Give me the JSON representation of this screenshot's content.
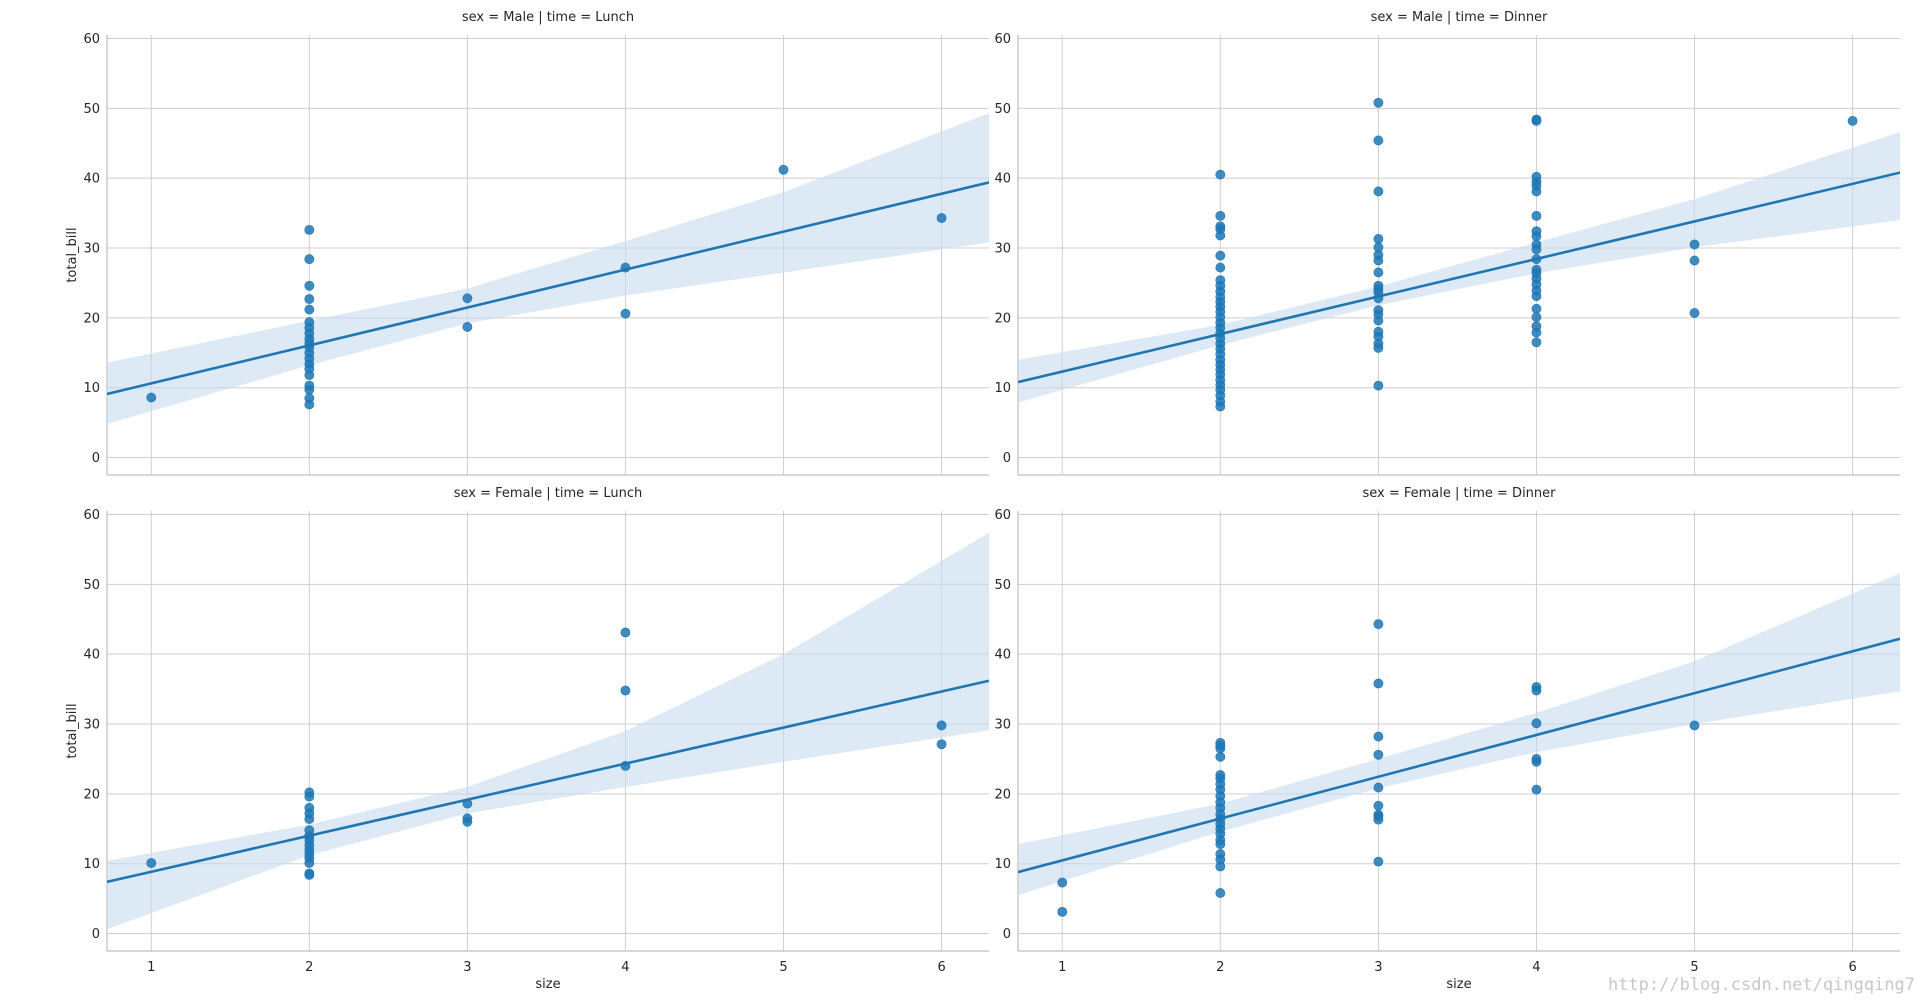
{
  "watermark": "http://blog.csdn.net/qingqing7",
  "colors": {
    "point": "#1f77b4",
    "line": "#2176b1",
    "band": "#c6dbef",
    "grid": "#cfcfcf",
    "spine": "#bfbfbf"
  },
  "chart_data": [
    {
      "type": "scatter",
      "title": "sex = Male | time = Lunch",
      "xlabel": "",
      "ylabel": "total_bill",
      "xlim": [
        0.72,
        6.3
      ],
      "ylim": [
        -2.5,
        60.5
      ],
      "xticks": [
        1,
        2,
        3,
        4,
        5,
        6
      ],
      "yticks": [
        0,
        10,
        20,
        30,
        40,
        50,
        60
      ],
      "grid": true,
      "x_tick_labels_visible": false,
      "regression": {
        "x": [
          0.72,
          6.3
        ],
        "y": [
          9.1,
          39.4
        ]
      },
      "ci_band": {
        "x": [
          0.72,
          2,
          3,
          4,
          5,
          6.3
        ],
        "lower": [
          4.8,
          13.2,
          19.2,
          23.2,
          26.5,
          30.8
        ],
        "upper": [
          13.6,
          19.6,
          24.2,
          31.0,
          38.0,
          49.3
        ]
      },
      "points": [
        {
          "x": 1,
          "y": 8.6
        },
        {
          "x": 2,
          "y": 7.6
        },
        {
          "x": 2,
          "y": 8.5
        },
        {
          "x": 2,
          "y": 9.7
        },
        {
          "x": 2,
          "y": 10.3
        },
        {
          "x": 2,
          "y": 11.8
        },
        {
          "x": 2,
          "y": 12.7
        },
        {
          "x": 2,
          "y": 13.4
        },
        {
          "x": 2,
          "y": 14.2
        },
        {
          "x": 2,
          "y": 15.0
        },
        {
          "x": 2,
          "y": 15.8
        },
        {
          "x": 2,
          "y": 16.4
        },
        {
          "x": 2,
          "y": 17.0
        },
        {
          "x": 2,
          "y": 17.8
        },
        {
          "x": 2,
          "y": 18.6
        },
        {
          "x": 2,
          "y": 19.4
        },
        {
          "x": 2,
          "y": 21.2
        },
        {
          "x": 2,
          "y": 22.7
        },
        {
          "x": 2,
          "y": 24.6
        },
        {
          "x": 2,
          "y": 28.4
        },
        {
          "x": 2,
          "y": 32.6
        },
        {
          "x": 3,
          "y": 18.7
        },
        {
          "x": 3,
          "y": 22.8
        },
        {
          "x": 4,
          "y": 20.6
        },
        {
          "x": 4,
          "y": 27.2
        },
        {
          "x": 5,
          "y": 41.2
        },
        {
          "x": 6,
          "y": 34.3
        }
      ]
    },
    {
      "type": "scatter",
      "title": "sex = Male | time = Dinner",
      "xlabel": "",
      "ylabel": "",
      "xlim": [
        0.72,
        6.3
      ],
      "ylim": [
        -2.5,
        60.5
      ],
      "xticks": [
        1,
        2,
        3,
        4,
        5,
        6
      ],
      "yticks": [
        0,
        10,
        20,
        30,
        40,
        50,
        60
      ],
      "grid": true,
      "x_tick_labels_visible": false,
      "regression": {
        "x": [
          0.72,
          6.3
        ],
        "y": [
          10.8,
          40.8
        ]
      },
      "ci_band": {
        "x": [
          0.72,
          2,
          3,
          4,
          5,
          6.3
        ],
        "lower": [
          7.9,
          16.1,
          21.8,
          26.4,
          30.1,
          34.0
        ],
        "upper": [
          14.0,
          19.0,
          24.5,
          30.8,
          37.0,
          46.6
        ]
      },
      "points": [
        {
          "x": 2,
          "y": 7.3
        },
        {
          "x": 2,
          "y": 8.0
        },
        {
          "x": 2,
          "y": 8.9
        },
        {
          "x": 2,
          "y": 9.7
        },
        {
          "x": 2,
          "y": 10.4
        },
        {
          "x": 2,
          "y": 11.1
        },
        {
          "x": 2,
          "y": 11.9
        },
        {
          "x": 2,
          "y": 12.6
        },
        {
          "x": 2,
          "y": 13.3
        },
        {
          "x": 2,
          "y": 14.0
        },
        {
          "x": 2,
          "y": 14.8
        },
        {
          "x": 2,
          "y": 15.6
        },
        {
          "x": 2,
          "y": 16.3
        },
        {
          "x": 2,
          "y": 17.1
        },
        {
          "x": 2,
          "y": 17.8
        },
        {
          "x": 2,
          "y": 18.6
        },
        {
          "x": 2,
          "y": 19.3
        },
        {
          "x": 2,
          "y": 20.1
        },
        {
          "x": 2,
          "y": 20.9
        },
        {
          "x": 2,
          "y": 21.6
        },
        {
          "x": 2,
          "y": 22.3
        },
        {
          "x": 2,
          "y": 23.0
        },
        {
          "x": 2,
          "y": 23.8
        },
        {
          "x": 2,
          "y": 24.6
        },
        {
          "x": 2,
          "y": 25.4
        },
        {
          "x": 2,
          "y": 27.2
        },
        {
          "x": 2,
          "y": 28.9
        },
        {
          "x": 2,
          "y": 31.8
        },
        {
          "x": 2,
          "y": 32.7
        },
        {
          "x": 2,
          "y": 33.1
        },
        {
          "x": 2,
          "y": 34.6
        },
        {
          "x": 2,
          "y": 40.5
        },
        {
          "x": 3,
          "y": 10.3
        },
        {
          "x": 3,
          "y": 15.7
        },
        {
          "x": 3,
          "y": 16.3
        },
        {
          "x": 3,
          "y": 17.3
        },
        {
          "x": 3,
          "y": 18.0
        },
        {
          "x": 3,
          "y": 19.6
        },
        {
          "x": 3,
          "y": 20.5
        },
        {
          "x": 3,
          "y": 21.1
        },
        {
          "x": 3,
          "y": 22.8
        },
        {
          "x": 3,
          "y": 23.6
        },
        {
          "x": 3,
          "y": 24.1
        },
        {
          "x": 3,
          "y": 24.6
        },
        {
          "x": 3,
          "y": 26.5
        },
        {
          "x": 3,
          "y": 28.2
        },
        {
          "x": 3,
          "y": 29.0
        },
        {
          "x": 3,
          "y": 30.1
        },
        {
          "x": 3,
          "y": 31.3
        },
        {
          "x": 3,
          "y": 38.1
        },
        {
          "x": 3,
          "y": 45.4
        },
        {
          "x": 3,
          "y": 50.8
        },
        {
          "x": 4,
          "y": 16.5
        },
        {
          "x": 4,
          "y": 17.9
        },
        {
          "x": 4,
          "y": 18.8
        },
        {
          "x": 4,
          "y": 20.1
        },
        {
          "x": 4,
          "y": 21.3
        },
        {
          "x": 4,
          "y": 23.1
        },
        {
          "x": 4,
          "y": 23.9
        },
        {
          "x": 4,
          "y": 24.8
        },
        {
          "x": 4,
          "y": 25.6
        },
        {
          "x": 4,
          "y": 26.4
        },
        {
          "x": 4,
          "y": 26.9
        },
        {
          "x": 4,
          "y": 28.4
        },
        {
          "x": 4,
          "y": 29.8
        },
        {
          "x": 4,
          "y": 30.5
        },
        {
          "x": 4,
          "y": 31.7
        },
        {
          "x": 4,
          "y": 32.4
        },
        {
          "x": 4,
          "y": 34.6
        },
        {
          "x": 4,
          "y": 38.1
        },
        {
          "x": 4,
          "y": 38.9
        },
        {
          "x": 4,
          "y": 39.5
        },
        {
          "x": 4,
          "y": 40.2
        },
        {
          "x": 4,
          "y": 48.2
        },
        {
          "x": 4,
          "y": 48.4
        },
        {
          "x": 5,
          "y": 20.7
        },
        {
          "x": 5,
          "y": 28.2
        },
        {
          "x": 5,
          "y": 30.5
        },
        {
          "x": 6,
          "y": 48.2
        }
      ]
    },
    {
      "type": "scatter",
      "title": "sex = Female | time = Lunch",
      "xlabel": "size",
      "ylabel": "total_bill",
      "xlim": [
        0.72,
        6.3
      ],
      "ylim": [
        -2.5,
        60.5
      ],
      "xticks": [
        1,
        2,
        3,
        4,
        5,
        6
      ],
      "yticks": [
        0,
        10,
        20,
        30,
        40,
        50,
        60
      ],
      "grid": true,
      "x_tick_labels_visible": true,
      "regression": {
        "x": [
          0.72,
          6.3
        ],
        "y": [
          7.4,
          36.2
        ]
      },
      "ci_band": {
        "x": [
          0.72,
          2,
          3,
          4,
          5,
          6.3
        ],
        "lower": [
          0.6,
          11.2,
          17.2,
          21.0,
          24.6,
          29.1
        ],
        "upper": [
          10.4,
          15.6,
          21.0,
          29.0,
          40.0,
          57.4
        ]
      },
      "points": [
        {
          "x": 1,
          "y": 10.1
        },
        {
          "x": 2,
          "y": 8.4
        },
        {
          "x": 2,
          "y": 8.6
        },
        {
          "x": 2,
          "y": 10.1
        },
        {
          "x": 2,
          "y": 10.8
        },
        {
          "x": 2,
          "y": 11.4
        },
        {
          "x": 2,
          "y": 12.0
        },
        {
          "x": 2,
          "y": 12.7
        },
        {
          "x": 2,
          "y": 13.4
        },
        {
          "x": 2,
          "y": 14.0
        },
        {
          "x": 2,
          "y": 14.8
        },
        {
          "x": 2,
          "y": 16.4
        },
        {
          "x": 2,
          "y": 17.2
        },
        {
          "x": 2,
          "y": 18.0
        },
        {
          "x": 2,
          "y": 19.6
        },
        {
          "x": 2,
          "y": 20.2
        },
        {
          "x": 3,
          "y": 16.0
        },
        {
          "x": 3,
          "y": 16.5
        },
        {
          "x": 3,
          "y": 18.6
        },
        {
          "x": 4,
          "y": 24.0
        },
        {
          "x": 4,
          "y": 34.8
        },
        {
          "x": 4,
          "y": 43.1
        },
        {
          "x": 6,
          "y": 27.1
        },
        {
          "x": 6,
          "y": 29.8
        }
      ]
    },
    {
      "type": "scatter",
      "title": "sex = Female | time = Dinner",
      "xlabel": "size",
      "ylabel": "",
      "xlim": [
        0.72,
        6.3
      ],
      "ylim": [
        -2.5,
        60.5
      ],
      "xticks": [
        1,
        2,
        3,
        4,
        5,
        6
      ],
      "yticks": [
        0,
        10,
        20,
        30,
        40,
        50,
        60
      ],
      "grid": true,
      "x_tick_labels_visible": true,
      "regression": {
        "x": [
          0.72,
          6.3
        ],
        "y": [
          8.8,
          42.2
        ]
      },
      "ci_band": {
        "x": [
          0.72,
          2,
          3,
          4,
          5,
          6.3
        ],
        "lower": [
          5.5,
          14.6,
          20.8,
          26.0,
          30.0,
          34.7
        ],
        "upper": [
          12.8,
          18.6,
          25.0,
          31.6,
          39.0,
          51.6
        ]
      },
      "points": [
        {
          "x": 1,
          "y": 3.1
        },
        {
          "x": 1,
          "y": 7.3
        },
        {
          "x": 2,
          "y": 5.8
        },
        {
          "x": 2,
          "y": 9.6
        },
        {
          "x": 2,
          "y": 10.6
        },
        {
          "x": 2,
          "y": 11.4
        },
        {
          "x": 2,
          "y": 12.8
        },
        {
          "x": 2,
          "y": 13.4
        },
        {
          "x": 2,
          "y": 14.3
        },
        {
          "x": 2,
          "y": 15.0
        },
        {
          "x": 2,
          "y": 15.7
        },
        {
          "x": 2,
          "y": 16.4
        },
        {
          "x": 2,
          "y": 17.1
        },
        {
          "x": 2,
          "y": 18.0
        },
        {
          "x": 2,
          "y": 18.8
        },
        {
          "x": 2,
          "y": 19.7
        },
        {
          "x": 2,
          "y": 20.6
        },
        {
          "x": 2,
          "y": 21.4
        },
        {
          "x": 2,
          "y": 22.2
        },
        {
          "x": 2,
          "y": 22.7
        },
        {
          "x": 2,
          "y": 25.3
        },
        {
          "x": 2,
          "y": 26.5
        },
        {
          "x": 2,
          "y": 26.9
        },
        {
          "x": 2,
          "y": 27.3
        },
        {
          "x": 3,
          "y": 10.3
        },
        {
          "x": 3,
          "y": 16.3
        },
        {
          "x": 3,
          "y": 16.8
        },
        {
          "x": 3,
          "y": 17.0
        },
        {
          "x": 3,
          "y": 18.3
        },
        {
          "x": 3,
          "y": 20.9
        },
        {
          "x": 3,
          "y": 25.6
        },
        {
          "x": 3,
          "y": 28.2
        },
        {
          "x": 3,
          "y": 35.8
        },
        {
          "x": 3,
          "y": 44.3
        },
        {
          "x": 4,
          "y": 20.6
        },
        {
          "x": 4,
          "y": 24.6
        },
        {
          "x": 4,
          "y": 25.0
        },
        {
          "x": 4,
          "y": 30.1
        },
        {
          "x": 4,
          "y": 34.8
        },
        {
          "x": 4,
          "y": 35.3
        },
        {
          "x": 5,
          "y": 29.8
        }
      ]
    }
  ]
}
